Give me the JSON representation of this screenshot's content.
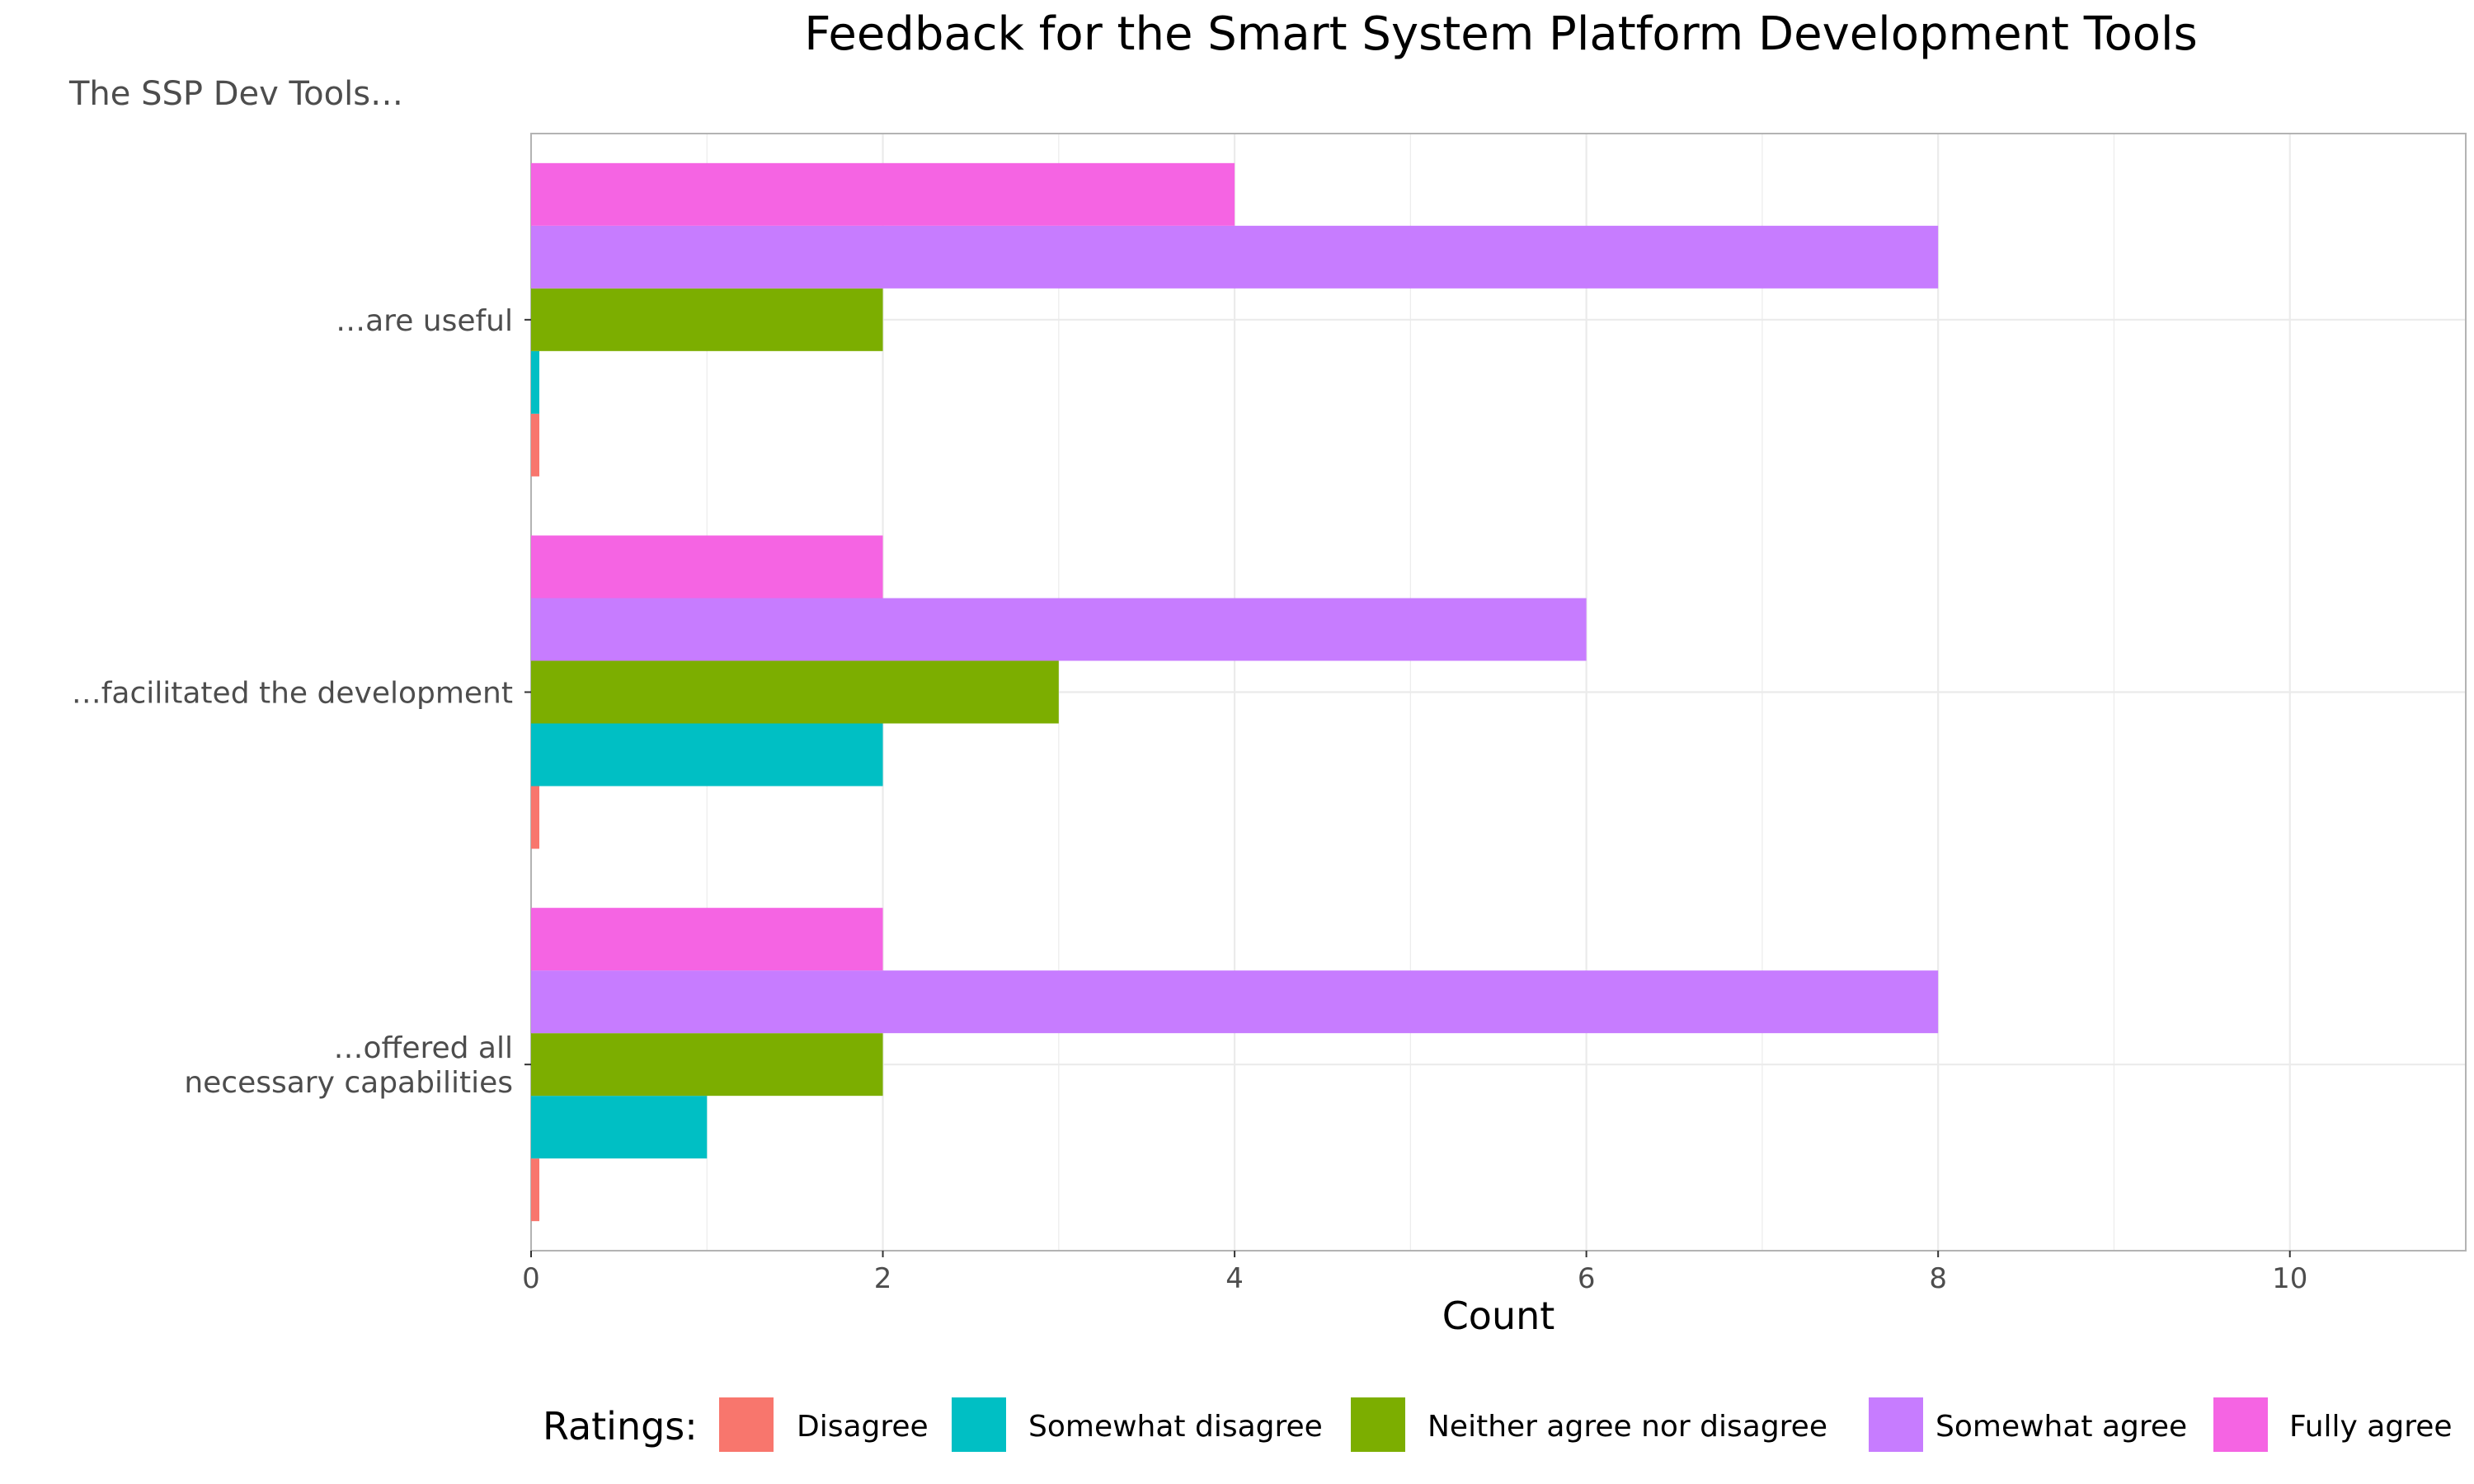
{
  "chart_data": {
    "type": "bar",
    "orientation": "horizontal",
    "title": "Feedback for the Smart System Platform Development Tools",
    "subtitle": "The SSP Dev Tools…",
    "xlabel": "Count",
    "ylabel": "",
    "xlim": [
      0,
      11
    ],
    "x_ticks": [
      0,
      2,
      4,
      6,
      8,
      10
    ],
    "grid": true,
    "legend_title": "Ratings:",
    "legend_position": "bottom",
    "categories": [
      "…are useful",
      "…facilitated the development",
      "…offered all\nnecessary capabilities"
    ],
    "series": [
      {
        "name": "Disagree",
        "color": "#F8766D",
        "values": [
          0,
          0,
          0
        ]
      },
      {
        "name": "Somewhat disagree",
        "color": "#00BFC4",
        "values": [
          0,
          2,
          1
        ]
      },
      {
        "name": "Neither agree nor disagree",
        "color": "#7CAE00",
        "values": [
          2,
          3,
          2
        ]
      },
      {
        "name": "Somewhat agree",
        "color": "#C77CFF",
        "values": [
          8,
          6,
          8
        ]
      },
      {
        "name": "Fully agree",
        "color": "#F564E3",
        "values": [
          4,
          2,
          2
        ]
      }
    ]
  }
}
